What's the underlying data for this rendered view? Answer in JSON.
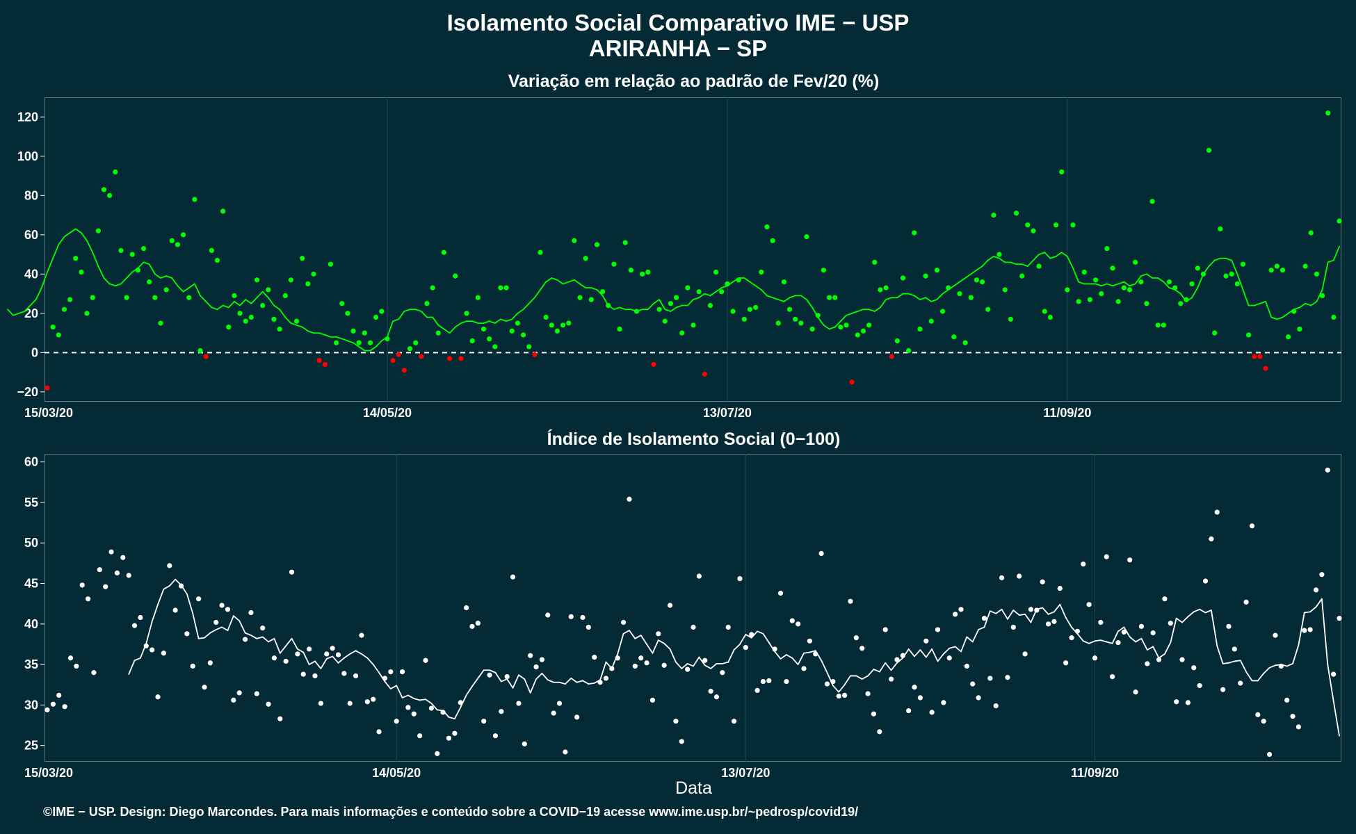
{
  "header": {
    "title_line1": "Isolamento Social Comparativo IME − USP",
    "title_line2": "ARIRANHA − SP"
  },
  "x_axis_label": "Data",
  "footer": "©IME − USP. Design: Diego Marcondes. Para mais informações e conteúdo sobre a COVID−19 acesse www.ime.usp.br/~pedrosp/covid19/",
  "colors": {
    "background": "#042a35",
    "positive": "#00ff00",
    "negative": "#ff0000",
    "index_series": "#ffffff",
    "grid": "#1e4a55"
  },
  "chart_data": [
    {
      "type": "scatter",
      "title": "Variação em relação ao padrão de Fev/20 (%)",
      "x_ticks": [
        "15/03/20",
        "14/05/20",
        "13/07/20",
        "11/09/20"
      ],
      "xlim": [
        "15/03/20",
        "21/11/20"
      ],
      "y_ticks": [
        -20,
        0,
        20,
        40,
        60,
        80,
        100,
        120
      ],
      "ylim": [
        -25,
        130
      ],
      "reference_line": 0,
      "series": [
        {
          "kind": "points",
          "color_rule": "green if >= 0, red if < 0",
          "values": [
            -18,
            13,
            9,
            22,
            27,
            48,
            41,
            20,
            28,
            62,
            83,
            80,
            92,
            52,
            28,
            50,
            42,
            53,
            36,
            28,
            15,
            32,
            57,
            55,
            60,
            28,
            78,
            1,
            -2,
            52,
            47,
            72,
            13,
            29,
            20,
            16,
            18,
            37,
            24,
            32,
            17,
            12,
            29,
            37,
            16,
            48,
            35,
            40,
            -4,
            -6,
            45,
            5,
            25,
            20,
            11,
            5,
            10,
            5,
            18,
            21,
            7,
            -4,
            -1,
            -9,
            2,
            5,
            -2,
            25,
            33,
            10,
            51,
            -3,
            39,
            -3,
            20,
            6,
            28,
            12,
            7,
            3,
            33,
            33,
            11,
            15,
            9,
            3,
            -1,
            51,
            18,
            14,
            11,
            14,
            15,
            57,
            28,
            48,
            27,
            55,
            31,
            24,
            45,
            12,
            56,
            42,
            21,
            40,
            41,
            -6,
            22,
            16,
            25,
            28,
            10,
            33,
            14,
            31,
            -11,
            24,
            41,
            31,
            35,
            21,
            37,
            17,
            22,
            23,
            41,
            64,
            57,
            15,
            36,
            22,
            17,
            15,
            59,
            12,
            19,
            42,
            28,
            28,
            13,
            14,
            -15,
            9,
            11,
            14,
            46,
            32,
            33,
            -2,
            6,
            38,
            1,
            61,
            12,
            39,
            16,
            42,
            21,
            33,
            8,
            30,
            5,
            28,
            37,
            36,
            22,
            70,
            50,
            32,
            17,
            71,
            39,
            65,
            62,
            44,
            21,
            18,
            65,
            92,
            32,
            65,
            26,
            41,
            27,
            37,
            30,
            53,
            43,
            26,
            33,
            32,
            46,
            36,
            25,
            77,
            14,
            14,
            36,
            33,
            25,
            27,
            35,
            43,
            40,
            103,
            10,
            63,
            39,
            40,
            35,
            45,
            9,
            -2,
            -2,
            -8,
            42,
            44,
            42,
            8,
            21,
            12,
            44,
            61,
            40,
            29,
            122,
            18,
            67
          ]
        },
        {
          "kind": "moving_average",
          "color_rule": "green if >= 0, red if < 0",
          "values": [
            22,
            19,
            20,
            21,
            24,
            27,
            33,
            41,
            48,
            55,
            59,
            61,
            63,
            61,
            57,
            51,
            44,
            38,
            35,
            34,
            35,
            38,
            41,
            43,
            46,
            45,
            40,
            38,
            39,
            38,
            34,
            31,
            33,
            35,
            29,
            26,
            23,
            22,
            24,
            23,
            26,
            24,
            27,
            25,
            28,
            31,
            28,
            24,
            22,
            18,
            15,
            14,
            13,
            11,
            10,
            10,
            9,
            8,
            8,
            7,
            6,
            5,
            3,
            1,
            1,
            3,
            6,
            8,
            16,
            17,
            21,
            22,
            22,
            21,
            18,
            18,
            14,
            12,
            10,
            13,
            15,
            16,
            16,
            15,
            15,
            16,
            15,
            17,
            16,
            17,
            20,
            22,
            25,
            28,
            32,
            36,
            38,
            37,
            35,
            36,
            37,
            35,
            33,
            33,
            32,
            29,
            24,
            22,
            23,
            22,
            22,
            21,
            22,
            22,
            25,
            27,
            22,
            21,
            23,
            24,
            24,
            27,
            28,
            30,
            29,
            31,
            33,
            34,
            36,
            38,
            38,
            36,
            34,
            32,
            29,
            28,
            27,
            26,
            28,
            29,
            29,
            27,
            23,
            18,
            14,
            12,
            13,
            16,
            19,
            20,
            21,
            22,
            22,
            21,
            23,
            27,
            28,
            28,
            30,
            30,
            29,
            27,
            28,
            26,
            27,
            30,
            32,
            34,
            36,
            38,
            40,
            42,
            44,
            47,
            49,
            48,
            46,
            46,
            45,
            45,
            44,
            47,
            50,
            51,
            48,
            49,
            51,
            49,
            43,
            36,
            35,
            35,
            35,
            34,
            35,
            34,
            35,
            36,
            34,
            35,
            39,
            40,
            38,
            38,
            36,
            33,
            32,
            30,
            26,
            28,
            33,
            40,
            44,
            47,
            48,
            48,
            47,
            40,
            32,
            24,
            24,
            25,
            26,
            18,
            17,
            18,
            20,
            22,
            23,
            25,
            24,
            26,
            32,
            46,
            47,
            54
          ]
        }
      ]
    },
    {
      "type": "scatter",
      "title": "Índice de Isolamento Social (0−100)",
      "x_ticks": [
        "15/03/20",
        "14/05/20",
        "13/07/20",
        "11/09/20"
      ],
      "xlim": [
        "15/03/20",
        "21/11/20"
      ],
      "y_ticks": [
        25,
        30,
        35,
        40,
        45,
        50,
        55,
        60
      ],
      "ylim": [
        23,
        61
      ],
      "series": [
        {
          "kind": "points",
          "color": "#ffffff",
          "values": [
            29.4,
            30.1,
            31.2,
            29.8,
            35.8,
            34.8,
            44.8,
            43.1,
            34.0,
            46.7,
            44.6,
            48.9,
            46.3,
            48.2,
            46.0,
            39.8,
            40.8,
            37.3,
            36.8,
            31.0,
            36.4,
            47.2,
            41.7,
            44.7,
            38.8,
            34.8,
            43.1,
            32.2,
            35.2,
            40.2,
            42.3,
            41.8,
            30.6,
            31.5,
            38.1,
            41.4,
            31.4,
            39.5,
            30.1,
            35.8,
            28.3,
            35.4,
            46.4,
            36.3,
            33.8,
            36.9,
            33.6,
            30.2,
            36.3,
            37.0,
            36.2,
            33.9,
            30.2,
            33.6,
            38.6,
            30.4,
            30.7,
            26.7,
            33.3,
            34.1,
            28.0,
            34.1,
            29.7,
            28.9,
            26.2,
            35.5,
            29.6,
            24.0,
            29.1,
            25.9,
            26.5,
            30.3,
            42.0,
            39.7,
            40.1,
            28.0,
            33.7,
            26.2,
            29.2,
            33.5,
            45.8,
            30.2,
            25.2,
            36.1,
            34.7,
            35.6,
            41.1,
            29.0,
            30.2,
            24.2,
            40.9,
            28.5,
            40.8,
            39.6,
            35.9,
            32.8,
            33.3,
            34.5,
            35.8,
            40.2,
            55.4,
            34.8,
            35.8,
            35.2,
            30.6,
            38.8,
            34.9,
            42.3,
            28.0,
            25.5,
            34.4,
            39.6,
            45.9,
            35.5,
            31.7,
            31.0,
            34.0,
            39.6,
            28.0,
            45.6,
            37.1,
            38.7,
            31.8,
            32.9,
            33.0,
            36.9,
            43.8,
            32.9,
            40.4,
            40.0,
            34.5,
            37.9,
            36.3,
            48.7,
            32.6,
            32.9,
            31.1,
            31.2,
            42.8,
            38.3,
            37.0,
            31.4,
            28.9,
            26.7,
            39.3,
            33.2,
            35.6,
            36.1,
            29.3,
            32.2,
            30.9,
            37.9,
            29.1,
            39.3,
            30.3,
            35.8,
            41.2,
            41.8,
            34.8,
            32.6,
            30.9,
            40.7,
            33.3,
            29.9,
            45.7,
            33.4,
            39.6,
            45.9,
            36.3,
            41.8,
            41.7,
            45.2,
            40.0,
            40.3,
            44.4,
            35.2,
            38.3,
            39.1,
            47.4,
            42.4,
            35.8,
            40.2,
            48.3,
            33.5,
            37.7,
            39.0,
            47.9,
            31.6,
            39.7,
            35.1,
            38.9,
            35.6,
            43.1,
            40.1,
            30.4,
            35.6,
            30.3,
            34.6,
            32.4,
            45.3,
            50.5,
            53.8,
            31.9,
            39.7,
            36.9,
            32.7,
            42.7,
            52.1,
            28.8,
            28.0,
            23.9,
            38.6,
            34.8,
            30.6,
            28.6,
            27.3,
            39.2,
            39.3,
            44.2,
            46.1,
            59.0,
            33.8,
            40.7
          ]
        },
        {
          "kind": "moving_average",
          "color": "#ffffff",
          "values": [
            33.8,
            35.5,
            35.8,
            37.6,
            40.3,
            42.4,
            44.3,
            44.7,
            45.5,
            44.8,
            43.7,
            41.3,
            38.2,
            38.3,
            38.9,
            39.3,
            39.6,
            39.2,
            41.0,
            40.4,
            38.9,
            38.6,
            38.2,
            38.4,
            37.8,
            38.2,
            36.4,
            37.3,
            38.2,
            36.9,
            36.5,
            35.0,
            35.4,
            34.5,
            35.7,
            36.0,
            35.2,
            35.8,
            36.3,
            36.7,
            36.3,
            35.8,
            35.0,
            34.0,
            32.9,
            32.0,
            32.4,
            30.9,
            31.2,
            30.8,
            30.6,
            30.7,
            30.2,
            29.4,
            29.3,
            28.5,
            28.3,
            29.7,
            31.2,
            32.3,
            33.3,
            34.3,
            34.3,
            34.0,
            32.9,
            33.2,
            32.1,
            33.7,
            33.2,
            31.5,
            33.2,
            33.9,
            33.1,
            32.8,
            32.8,
            32.6,
            33.3,
            32.8,
            33.0,
            32.6,
            32.7,
            33.1,
            35.3,
            34.5,
            36.3,
            38.8,
            39.2,
            38.2,
            38.6,
            37.5,
            36.4,
            38.0,
            37.6,
            36.9,
            35.3,
            34.5,
            35.1,
            34.8,
            35.9,
            34.9,
            34.5,
            35.1,
            35.1,
            35.3,
            36.8,
            37.5,
            38.7,
            38.3,
            39.1,
            38.8,
            37.7,
            36.6,
            35.7,
            36.2,
            35.8,
            35.0,
            36.4,
            36.5,
            36.7,
            35.5,
            34.0,
            32.4,
            31.6,
            32.5,
            33.6,
            33.6,
            33.2,
            33.6,
            34.4,
            34.1,
            35.2,
            34.3,
            35.2,
            35.8,
            36.9,
            36.0,
            36.8,
            35.9,
            36.9,
            35.4,
            36.3,
            37.0,
            37.2,
            36.6,
            38.4,
            37.8,
            39.3,
            39.6,
            41.6,
            41.3,
            41.8,
            40.6,
            41.7,
            41.1,
            41.2,
            40.2,
            41.8,
            42.0,
            41.2,
            41.5,
            42.4,
            40.8,
            39.6,
            38.8,
            37.9,
            37.6,
            37.9,
            38.0,
            37.8,
            37.6,
            39.1,
            39.6,
            38.4,
            37.8,
            38.2,
            36.8,
            37.2,
            35.8,
            36.3,
            37.7,
            40.7,
            40.2,
            40.9,
            41.5,
            41.8,
            41.4,
            41.7,
            37.3,
            35.1,
            35.2,
            35.4,
            35.5,
            34.1,
            33.0,
            33.0,
            33.9,
            34.6,
            34.9,
            35.0,
            34.8,
            35.1,
            37.4,
            41.4,
            41.5,
            42.1,
            43.1,
            35.0,
            30.5,
            26.2
          ]
        }
      ]
    }
  ]
}
